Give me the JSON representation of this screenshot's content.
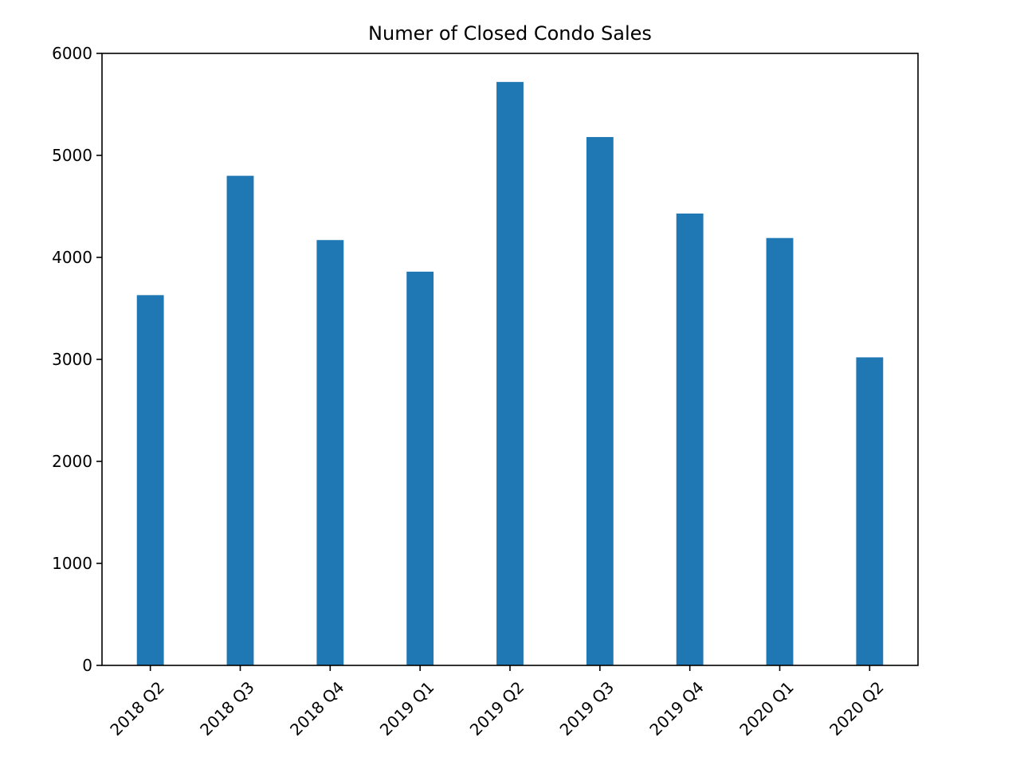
{
  "chart_data": {
    "type": "bar",
    "title": "Numer of Closed Condo Sales",
    "xlabel": "",
    "ylabel": "",
    "categories": [
      "2018 Q2",
      "2018 Q3",
      "2018 Q4",
      "2019 Q1",
      "2019 Q2",
      "2019 Q3",
      "2019 Q4",
      "2020 Q1",
      "2020 Q2"
    ],
    "values": [
      3630,
      4800,
      4170,
      3860,
      5720,
      5180,
      4430,
      4190,
      3020
    ],
    "ylim": [
      0,
      6000
    ],
    "yticks": [
      0,
      1000,
      2000,
      3000,
      4000,
      5000,
      6000
    ],
    "grid": false,
    "legend": "none",
    "bar_color": "#1f77b4",
    "x_tick_rotation": "45 degrees"
  }
}
